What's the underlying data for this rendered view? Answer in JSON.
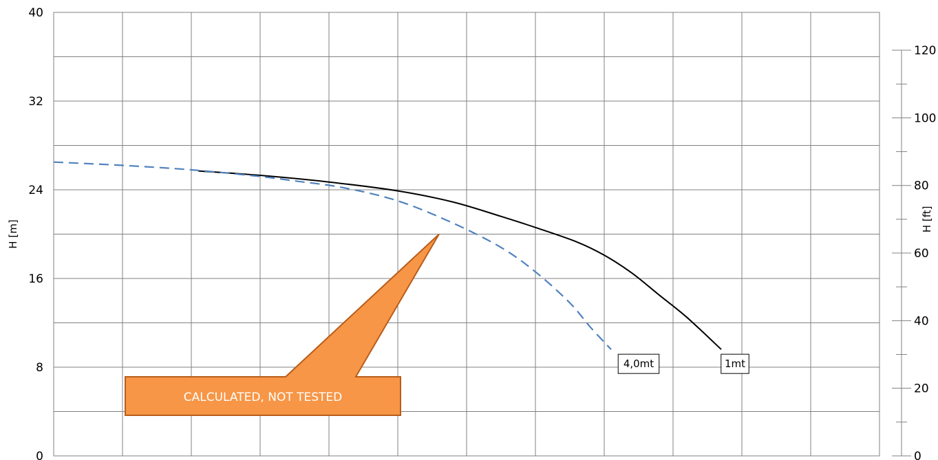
{
  "chart_data": {
    "type": "line",
    "xlim": [
      0,
      12
    ],
    "x_tick_labels": [],
    "grid": true,
    "y_left": {
      "label": "H [m]",
      "range": [
        0,
        40
      ],
      "ticks": [
        0,
        8,
        16,
        24,
        32,
        40
      ],
      "minor_gridlines": [
        4,
        12,
        20,
        28,
        36
      ]
    },
    "y_right": {
      "label": "H [ft]",
      "range": [
        0,
        131.2
      ],
      "ticks": [
        0,
        20,
        40,
        60,
        80,
        100,
        120
      ]
    },
    "series": [
      {
        "name": "1mt",
        "style": "solid",
        "color": "#000000",
        "points": [
          [
            2.1,
            25.7
          ],
          [
            3.0,
            25.3
          ],
          [
            4.0,
            24.7
          ],
          [
            5.0,
            23.9
          ],
          [
            5.8,
            22.9
          ],
          [
            6.5,
            21.6
          ],
          [
            7.0,
            20.6
          ],
          [
            7.6,
            19.3
          ],
          [
            8.0,
            18.1
          ],
          [
            8.4,
            16.5
          ],
          [
            8.8,
            14.5
          ],
          [
            9.2,
            12.5
          ],
          [
            9.7,
            9.6
          ]
        ]
      },
      {
        "name": "4,0mt",
        "style": "dashed",
        "color": "#4f81bd",
        "points": [
          [
            0.0,
            26.5
          ],
          [
            1.0,
            26.2
          ],
          [
            2.0,
            25.8
          ],
          [
            3.0,
            25.2
          ],
          [
            3.5,
            24.8
          ],
          [
            4.2,
            24.2
          ],
          [
            5.0,
            23.0
          ],
          [
            5.8,
            21.0
          ],
          [
            6.5,
            18.8
          ],
          [
            7.0,
            16.6
          ],
          [
            7.5,
            13.8
          ],
          [
            7.8,
            11.6
          ],
          [
            8.1,
            9.6
          ]
        ]
      }
    ],
    "annotations": [
      {
        "name": "4,0mt",
        "x": 8.5,
        "y": 8.3
      },
      {
        "name": "1mt",
        "x": 9.9,
        "y": 8.3
      }
    ],
    "callout": {
      "text": "CALCULATED, NOT TESTED",
      "fill": "#f79646",
      "border": "#b85c1a",
      "pointer_to": [
        5.6,
        20.0
      ]
    }
  }
}
